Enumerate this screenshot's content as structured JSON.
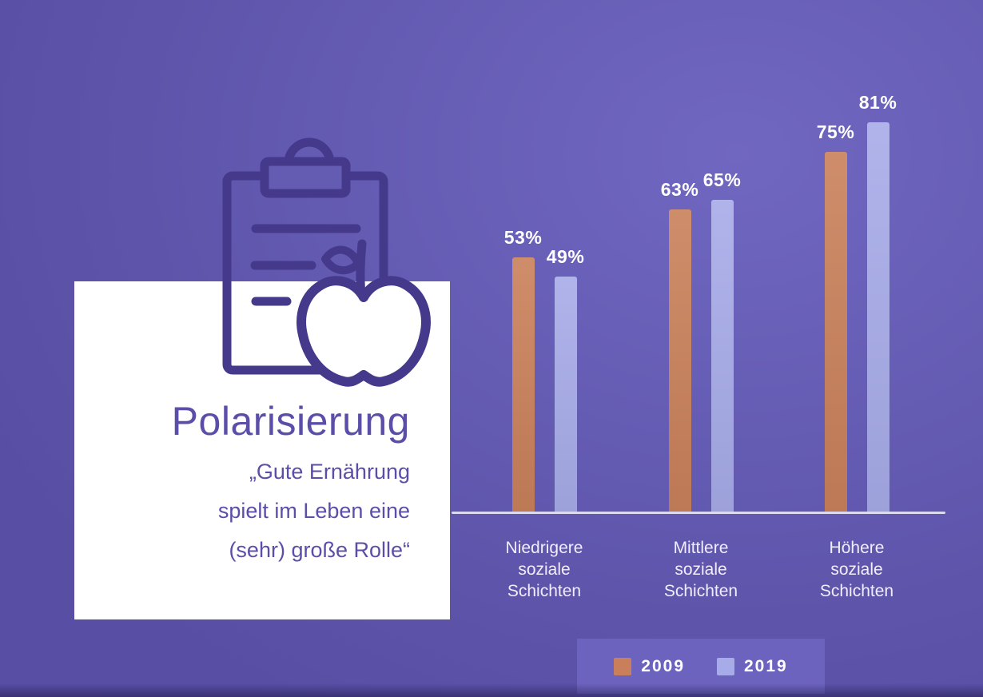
{
  "card": {
    "title": "Polarisierung",
    "quote_lines": [
      "„Gute Ernährung",
      "spielt im Leben eine",
      "(sehr) große Rolle“"
    ]
  },
  "chart_data": {
    "type": "bar",
    "title": "",
    "xlabel": "",
    "ylabel": "",
    "categories": [
      "Niedrigere soziale Schichten",
      "Mittlere soziale Schichten",
      "Höhere soziale Schichten"
    ],
    "series": [
      {
        "name": "2009",
        "color": "#C9805A",
        "values": [
          53,
          63,
          75
        ]
      },
      {
        "name": "2019",
        "color": "#A7ABE8",
        "values": [
          49,
          65,
          81
        ]
      }
    ],
    "value_suffix": "%",
    "value_labels_shown": true,
    "ylim": [
      0,
      100
    ],
    "grid": false,
    "axis_line_color": "#DCD9F2",
    "legend_position": "bottom"
  },
  "legend": {
    "background": "#6C63BE",
    "text_color": "#FFFFFF",
    "items": [
      {
        "label": "2009",
        "color": "#C9805A"
      },
      {
        "label": "2019",
        "color": "#A7ABE8"
      }
    ]
  },
  "icon": {
    "name": "clipboard-with-apple",
    "stroke_color": "#44398B",
    "apple_fill": "#FFFFFF",
    "tab_fill": "#645BB2"
  },
  "colors": {
    "background": "#6158AD",
    "background_highlight": "#7067C1",
    "card_background": "#FFFFFF",
    "card_text": "#5B4EA9",
    "value_label_text": "#FFFFFF",
    "category_label_text": "#F0EEFA"
  }
}
